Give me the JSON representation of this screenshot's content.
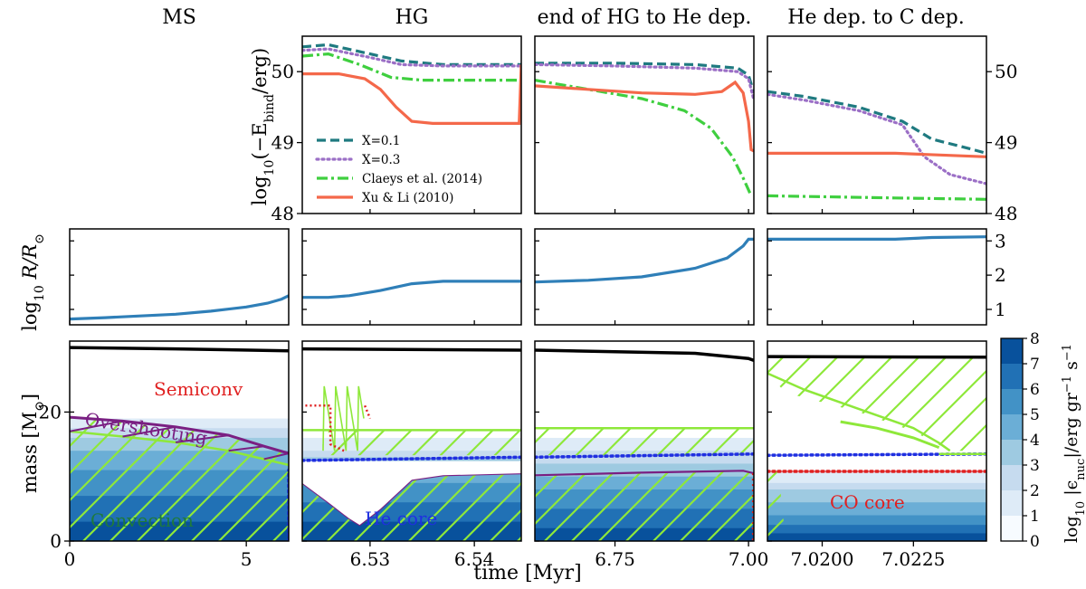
{
  "figure": {
    "xlabel": "time [Myr]",
    "phase_titles": [
      "MS",
      "HG",
      "end of HG to He dep.",
      "He dep. to C dep."
    ]
  },
  "rows": {
    "ebind_ylabel": "log10(−E_bind/erg)",
    "ebind_ylabel_main": "log",
    "ebind_ylabel_sub": "10",
    "ebind_ylabel_rest": "(−E",
    "ebind_ylabel_sub2": "bind",
    "ebind_ylabel_end": "/erg)",
    "radius_ylabel_main": "log",
    "radius_ylabel_sub": "10",
    "radius_ylabel_rest": " R/R",
    "radius_ylabel_sun": "⊙",
    "mass_ylabel": "mass [M",
    "mass_ylabel_sun": "⊙",
    "mass_ylabel_end": "]"
  },
  "colorbar": {
    "label": "log10 |ε_nuc|/erg gr⁻¹ s⁻¹",
    "label_main": "log",
    "label_sub": "10",
    "label_rest": " |ϵ",
    "label_sub2": "nuc",
    "label_end": "|/erg gr",
    "label_sup1": "−1",
    "label_s": " s",
    "label_sup2": "−1",
    "ticks": [
      "0",
      "1",
      "2",
      "3",
      "4",
      "5",
      "6",
      "7",
      "8"
    ],
    "colors": [
      "#f7fbff",
      "#deebf7",
      "#c6dbef",
      "#9ecae1",
      "#6baed6",
      "#4292c6",
      "#2171b5",
      "#08519c"
    ]
  },
  "annotations": {
    "semiconv": "Semiconv",
    "overshooting": "Overshooting",
    "convection": "Convection",
    "he_core": "He core",
    "co_core": "CO core"
  },
  "colors": {
    "x01": "#1f7a80",
    "x03": "#9b6fc6",
    "claeys": "#3fcf3f",
    "xuli": "#f4684a",
    "radius": "#2f7fb8",
    "hatch": "#8ee83a",
    "overshoot": "#7a1f82",
    "semiconv": "#e02020",
    "hecore": "#1f2fe0",
    "cocore": "#e02020"
  },
  "chart_data": {
    "type": "line",
    "panels": [
      {
        "phase": "MS",
        "xlim": [
          0,
          6.2
        ],
        "xticks": [
          {
            "v": 0,
            "label": "0"
          },
          {
            "v": 5,
            "label": "5"
          }
        ],
        "radius": [
          [
            0,
            0.72
          ],
          [
            1,
            0.76
          ],
          [
            2,
            0.81
          ],
          [
            3,
            0.86
          ],
          [
            4,
            0.95
          ],
          [
            5,
            1.07
          ],
          [
            5.6,
            1.18
          ],
          [
            6.0,
            1.3
          ],
          [
            6.2,
            1.4
          ]
        ],
        "mass": {
          "total": [
            [
              0,
              30
            ],
            [
              3,
              29.8
            ],
            [
              6.2,
              29.5
            ]
          ],
          "convective_core": [
            [
              0,
              17
            ],
            [
              1.5,
              16.2
            ],
            [
              3,
              15.3
            ],
            [
              4.5,
              14.0
            ],
            [
              5.5,
              12.7
            ],
            [
              6.2,
              11.8
            ]
          ],
          "overshoot_top": [
            [
              0,
              19.2
            ],
            [
              1.5,
              18.6
            ],
            [
              3,
              17.7
            ],
            [
              4.5,
              16.4
            ],
            [
              5.5,
              14.7
            ],
            [
              6.2,
              13.6
            ]
          ],
          "he_core": [
            [
              6.2,
              0
            ],
            [
              6.2,
              11
            ]
          ],
          "nuc_bands": [
            [
              19,
              1
            ],
            [
              17.5,
              2
            ],
            [
              16,
              3
            ],
            [
              14,
              4
            ],
            [
              11,
              5
            ],
            [
              7,
              6
            ],
            [
              3,
              7
            ]
          ]
        }
      },
      {
        "phase": "HG",
        "xlim": [
          6.5235,
          6.5445
        ],
        "xticks": [
          {
            "v": 6.53,
            "label": "6.53"
          },
          {
            "v": 6.54,
            "label": "6.54"
          }
        ],
        "ebind": {
          "x01": [
            [
              6.5235,
              50.35
            ],
            [
              6.526,
              50.38
            ],
            [
              6.53,
              50.25
            ],
            [
              6.533,
              50.15
            ],
            [
              6.537,
              50.1
            ],
            [
              6.5445,
              50.1
            ]
          ],
          "x03": [
            [
              6.5235,
              50.3
            ],
            [
              6.526,
              50.32
            ],
            [
              6.53,
              50.2
            ],
            [
              6.533,
              50.1
            ],
            [
              6.537,
              50.08
            ],
            [
              6.5445,
              50.08
            ]
          ],
          "claeys": [
            [
              6.5235,
              50.22
            ],
            [
              6.526,
              50.25
            ],
            [
              6.529,
              50.1
            ],
            [
              6.532,
              49.92
            ],
            [
              6.535,
              49.88
            ],
            [
              6.5445,
              49.88
            ]
          ],
          "xuli": [
            [
              6.5235,
              49.97
            ],
            [
              6.527,
              49.97
            ],
            [
              6.5295,
              49.9
            ],
            [
              6.531,
              49.75
            ],
            [
              6.5325,
              49.5
            ],
            [
              6.534,
              49.3
            ],
            [
              6.536,
              49.27
            ],
            [
              6.5443,
              49.27
            ],
            [
              6.5445,
              50.1
            ]
          ]
        },
        "radius": [
          [
            6.5235,
            1.35
          ],
          [
            6.526,
            1.35
          ],
          [
            6.528,
            1.4
          ],
          [
            6.531,
            1.55
          ],
          [
            6.534,
            1.75
          ],
          [
            6.537,
            1.82
          ],
          [
            6.5445,
            1.82
          ]
        ],
        "mass": {
          "total": [
            [
              6.5235,
              29.8
            ],
            [
              6.5445,
              29.6
            ]
          ],
          "he_core": [
            [
              6.5235,
              12.5
            ],
            [
              6.5445,
              13
            ]
          ],
          "envelope_conv_bottom": [
            [
              6.5235,
              9
            ],
            [
              6.526,
              6
            ],
            [
              6.528,
              3.5
            ],
            [
              6.529,
              2.5
            ],
            [
              6.531,
              5
            ],
            [
              6.534,
              9.5
            ],
            [
              6.537,
              10.2
            ],
            [
              6.5445,
              10.5
            ]
          ],
          "nuc_bands": [
            [
              16,
              1
            ],
            [
              14,
              2
            ],
            [
              13,
              3
            ],
            [
              11,
              4
            ],
            [
              9,
              5
            ],
            [
              6,
              6
            ],
            [
              3,
              7
            ]
          ]
        }
      },
      {
        "phase": "end of HG to He dep.",
        "xlim": [
          6.6,
          7.01
        ],
        "xticks": [
          {
            "v": 6.75,
            "label": "6.75"
          },
          {
            "v": 7.0,
            "label": "7.00"
          }
        ],
        "ebind": {
          "x01": [
            [
              6.6,
              50.12
            ],
            [
              6.75,
              50.12
            ],
            [
              6.9,
              50.1
            ],
            [
              6.98,
              50.05
            ],
            [
              7.0,
              49.95
            ],
            [
              7.01,
              49.7
            ]
          ],
          "x03": [
            [
              6.6,
              50.1
            ],
            [
              6.75,
              50.08
            ],
            [
              6.9,
              50.05
            ],
            [
              6.98,
              50.0
            ],
            [
              7.0,
              49.9
            ],
            [
              7.01,
              49.6
            ]
          ],
          "claeys": [
            [
              6.6,
              49.88
            ],
            [
              6.7,
              49.75
            ],
            [
              6.8,
              49.62
            ],
            [
              6.88,
              49.45
            ],
            [
              6.93,
              49.2
            ],
            [
              6.97,
              48.8
            ],
            [
              6.99,
              48.5
            ],
            [
              7.005,
              48.25
            ]
          ],
          "xuli": [
            [
              6.6,
              49.8
            ],
            [
              6.7,
              49.75
            ],
            [
              6.8,
              49.7
            ],
            [
              6.9,
              49.68
            ],
            [
              6.95,
              49.72
            ],
            [
              6.975,
              49.85
            ],
            [
              6.99,
              49.7
            ],
            [
              7.0,
              49.3
            ],
            [
              7.005,
              48.9
            ],
            [
              7.01,
              48.88
            ]
          ]
        },
        "radius": [
          [
            6.6,
            1.8
          ],
          [
            6.7,
            1.85
          ],
          [
            6.8,
            1.95
          ],
          [
            6.9,
            2.2
          ],
          [
            6.96,
            2.5
          ],
          [
            6.99,
            2.85
          ],
          [
            7.0,
            3.05
          ],
          [
            7.01,
            3.05
          ]
        ],
        "mass": {
          "total": [
            [
              6.6,
              29.6
            ],
            [
              6.9,
              29.1
            ],
            [
              7.0,
              28.3
            ],
            [
              7.01,
              28
            ]
          ],
          "he_core": [
            [
              6.6,
              13
            ],
            [
              7.01,
              13.5
            ]
          ],
          "envelope_conv_bottom": [
            [
              6.6,
              10.2
            ],
            [
              6.8,
              10.6
            ],
            [
              6.99,
              10.9
            ],
            [
              7.01,
              10.5
            ]
          ],
          "nuc_bands": [
            [
              16,
              1
            ],
            [
              14,
              2
            ],
            [
              12,
              3
            ],
            [
              10,
              4
            ],
            [
              8,
              5
            ],
            [
              5,
              6
            ],
            [
              2,
              7
            ]
          ]
        }
      },
      {
        "phase": "He dep. to C dep.",
        "xlim": [
          7.0185,
          7.0245
        ],
        "xticks": [
          {
            "v": 7.02,
            "label": "7.0200"
          },
          {
            "v": 7.0225,
            "label": "7.0225"
          }
        ],
        "ebind": {
          "x01": [
            [
              7.0185,
              49.72
            ],
            [
              7.0195,
              49.65
            ],
            [
              7.021,
              49.5
            ],
            [
              7.0222,
              49.3
            ],
            [
              7.023,
              49.05
            ],
            [
              7.024,
              48.92
            ],
            [
              7.0245,
              48.85
            ]
          ],
          "x03": [
            [
              7.0185,
              49.68
            ],
            [
              7.0195,
              49.6
            ],
            [
              7.021,
              49.45
            ],
            [
              7.0222,
              49.25
            ],
            [
              7.0228,
              48.8
            ],
            [
              7.0235,
              48.55
            ],
            [
              7.0245,
              48.42
            ]
          ],
          "claeys": [
            [
              7.0185,
              48.25
            ],
            [
              7.022,
              48.22
            ],
            [
              7.0245,
              48.2
            ]
          ],
          "xuli": [
            [
              7.0185,
              48.85
            ],
            [
              7.022,
              48.85
            ],
            [
              7.0245,
              48.8
            ]
          ]
        },
        "radius": [
          [
            7.0185,
            3.05
          ],
          [
            7.022,
            3.05
          ],
          [
            7.023,
            3.1
          ],
          [
            7.0245,
            3.12
          ]
        ],
        "mass": {
          "total": [
            [
              7.0185,
              28.6
            ],
            [
              7.0245,
              28.5
            ]
          ],
          "he_core": [
            [
              7.0185,
              13.3
            ],
            [
              7.0245,
              13.5
            ]
          ],
          "co_core": [
            [
              7.0185,
              10.8
            ],
            [
              7.0245,
              10.8
            ]
          ],
          "nuc_bands": [
            [
              11,
              1
            ],
            [
              9,
              2
            ],
            [
              8,
              3
            ],
            [
              6,
              4
            ],
            [
              4,
              5
            ],
            [
              2.5,
              6
            ],
            [
              1.2,
              7
            ]
          ]
        }
      }
    ],
    "legend": [
      {
        "key": "x01",
        "label": "X=0.1",
        "style": "dashed"
      },
      {
        "key": "x03",
        "label": "X=0.3",
        "style": "dotted"
      },
      {
        "key": "claeys",
        "label": "Claeys et al. (2014)",
        "style": "dashdot"
      },
      {
        "key": "xuli",
        "label": "Xu & Li (2010)",
        "style": "solid"
      }
    ],
    "ebind_ylim": [
      48,
      50.5
    ],
    "ebind_yticks": [
      "48",
      "49",
      "50"
    ],
    "radius_ylim": [
      0.55,
      3.35
    ],
    "radius_yticks": [
      "1",
      "2",
      "3"
    ],
    "mass_ylim": [
      0,
      31
    ],
    "mass_yticks": [
      "0",
      "20"
    ]
  }
}
